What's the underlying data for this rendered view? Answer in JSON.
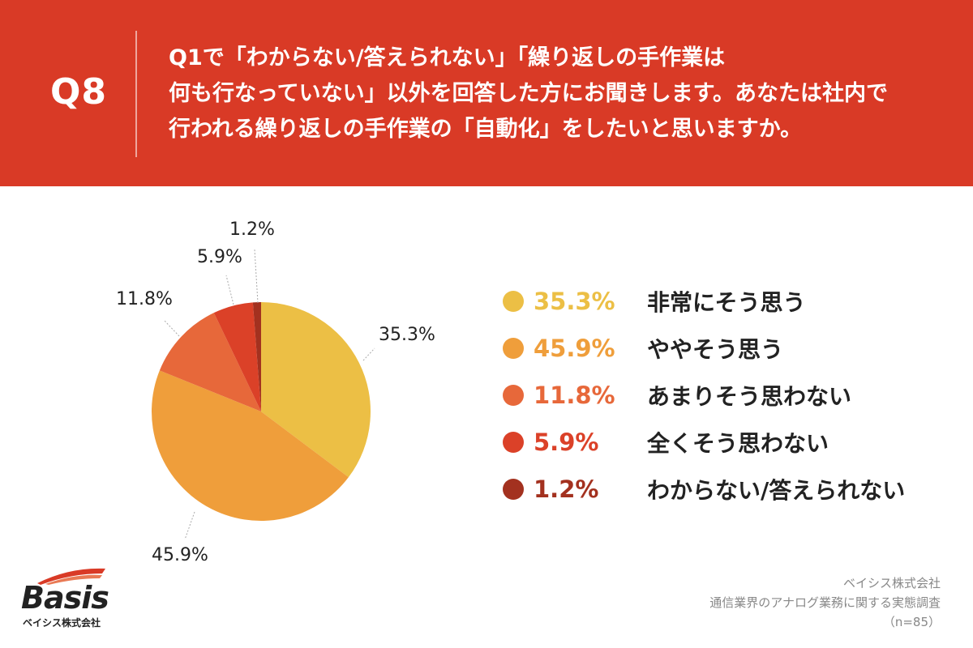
{
  "header": {
    "question_number": "Q8",
    "question_lines": [
      "Q1で「わからない/答えられない」「繰り返しの手作業は",
      "何も行なっていない」以外を回答した方にお聞きします。あなたは社内で",
      "行われる繰り返しの手作業の「自動化」をしたいと思いますか。"
    ]
  },
  "chart_data": {
    "type": "pie",
    "title": "",
    "slices": [
      {
        "label": "非常にそう思う",
        "value": 35.3,
        "display": "35.3%",
        "color": "#ecbf45"
      },
      {
        "label": "ややそう思う",
        "value": 45.9,
        "display": "45.9%",
        "color": "#ef9e3b"
      },
      {
        "label": "あまりそう思わない",
        "value": 11.8,
        "display": "11.8%",
        "color": "#e7683a"
      },
      {
        "label": "全くそう思わない",
        "value": 5.9,
        "display": "5.9%",
        "color": "#db4128"
      },
      {
        "label": "わからない/答えられない",
        "value": 1.2,
        "display": "1.2%",
        "color": "#a3311f"
      }
    ],
    "legend_placement": "right"
  },
  "footer": {
    "logo_word": "Basis",
    "logo_company": "ベイシス株式会社",
    "source_lines": [
      "ベイシス株式会社",
      "通信業界のアナログ業務に関する実態調査",
      "（n=85）"
    ]
  }
}
